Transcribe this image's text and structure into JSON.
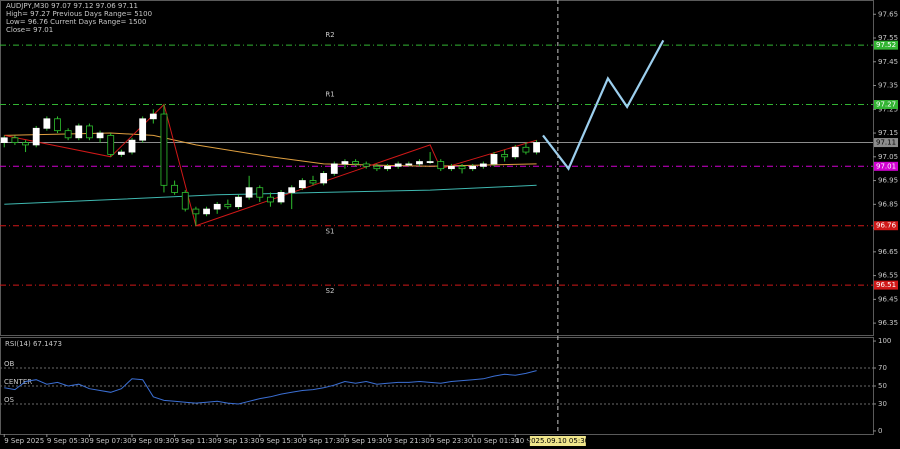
{
  "chart_data": [
    {
      "type": "candlestick",
      "header": [
        "AUDJPY,M30  97.07 97.12 97.06 97.11",
        "High= 97.27    Previous Days Range= 5100",
        "Low= 96.76    Current Days Range= 1500",
        "Close= 97.01"
      ],
      "x": [
        0,
        1,
        2,
        3,
        4,
        5,
        6,
        7,
        8,
        9,
        10,
        11,
        12,
        13,
        14,
        15,
        16,
        17,
        18,
        19,
        20,
        21,
        22,
        23,
        24,
        25,
        26,
        27,
        28,
        29,
        30,
        31,
        32,
        33,
        34,
        35,
        36,
        37,
        38,
        39,
        40,
        41,
        42,
        43,
        44,
        45,
        46,
        47,
        48,
        49,
        50
      ],
      "open": [
        97.11,
        97.13,
        97.11,
        97.1,
        97.17,
        97.21,
        97.16,
        97.13,
        97.18,
        97.13,
        97.14,
        97.06,
        97.07,
        97.12,
        97.21,
        97.23,
        96.93,
        96.9,
        96.83,
        96.81,
        96.83,
        96.85,
        96.84,
        96.88,
        96.92,
        96.88,
        96.86,
        96.9,
        96.92,
        96.95,
        96.94,
        96.98,
        97.02,
        97.03,
        97.02,
        97.01,
        97.0,
        97.01,
        97.02,
        97.02,
        97.03,
        97.03,
        97.0,
        97.01,
        97.0,
        97.01,
        97.02,
        97.06,
        97.05,
        97.09,
        97.07
      ],
      "high": [
        97.14,
        97.14,
        97.12,
        97.18,
        97.22,
        97.22,
        97.17,
        97.19,
        97.19,
        97.16,
        97.15,
        97.08,
        97.13,
        97.22,
        97.25,
        97.27,
        96.95,
        96.91,
        96.84,
        96.84,
        96.86,
        96.87,
        96.89,
        96.97,
        96.93,
        96.9,
        96.91,
        96.93,
        96.96,
        96.97,
        96.99,
        97.03,
        97.04,
        97.04,
        97.03,
        97.02,
        97.02,
        97.03,
        97.03,
        97.04,
        97.07,
        97.04,
        97.02,
        97.02,
        97.02,
        97.03,
        97.07,
        97.08,
        97.1,
        97.11,
        97.12
      ],
      "low": [
        97.09,
        97.1,
        97.07,
        97.09,
        97.16,
        97.15,
        97.12,
        97.12,
        97.12,
        97.11,
        97.05,
        97.05,
        97.06,
        97.11,
        97.19,
        96.9,
        96.89,
        96.82,
        96.76,
        96.8,
        96.81,
        96.83,
        96.83,
        96.87,
        96.86,
        96.84,
        96.85,
        96.83,
        96.91,
        96.93,
        96.93,
        96.97,
        97.0,
        97.01,
        97.0,
        96.99,
        96.99,
        97.0,
        97.01,
        97.01,
        97.02,
        96.99,
        96.99,
        96.98,
        96.99,
        97.0,
        97.01,
        97.03,
        97.04,
        97.06,
        97.06
      ],
      "close": [
        97.13,
        97.11,
        97.1,
        97.17,
        97.21,
        97.16,
        97.13,
        97.18,
        97.13,
        97.15,
        97.06,
        97.07,
        97.12,
        97.21,
        97.23,
        96.93,
        96.9,
        96.83,
        96.81,
        96.83,
        96.85,
        96.84,
        96.88,
        96.92,
        96.88,
        96.86,
        96.9,
        96.92,
        96.95,
        96.94,
        96.98,
        97.02,
        97.03,
        97.02,
        97.01,
        97.0,
        97.01,
        97.02,
        97.02,
        97.03,
        97.03,
        97.0,
        97.01,
        97.0,
        97.01,
        97.02,
        97.06,
        97.05,
        97.09,
        97.07,
        97.11
      ],
      "up_color": "#ffffff",
      "down_color": "#000000",
      "wick_color": "#2fc02f",
      "series": [
        {
          "color": "#e0a040",
          "x": [
            0,
            10,
            14,
            18,
            25,
            30,
            40,
            50
          ],
          "values": [
            97.14,
            97.15,
            97.14,
            97.1,
            97.05,
            97.02,
            97.01,
            97.02
          ]
        },
        {
          "color": "#3fb8b0",
          "x": [
            0,
            10,
            20,
            30,
            40,
            50
          ],
          "values": [
            96.85,
            96.87,
            96.89,
            96.9,
            96.91,
            96.93
          ]
        },
        {
          "color": "#d01818",
          "x": [
            0,
            10,
            15,
            18,
            40,
            41,
            50
          ],
          "values": [
            97.14,
            97.05,
            97.27,
            96.76,
            97.1,
            97.0,
            97.12
          ]
        },
        {
          "color": "#9ccfee",
          "x": [
            50.6,
            53,
            56.7,
            58.5,
            61.9
          ],
          "values": [
            97.14,
            97.0,
            97.38,
            97.26,
            97.54
          ]
        }
      ],
      "levels": [
        {
          "label": "R2",
          "value": 97.52,
          "color": "#33b533"
        },
        {
          "label": "R1",
          "value": 97.27,
          "color": "#33b533"
        },
        {
          "value": 97.11,
          "color": "#8c8c8c"
        },
        {
          "value": 97.01,
          "color": "#d000d0"
        },
        {
          "label": "S1",
          "value": 96.76,
          "color": "#d01818"
        },
        {
          "label": "S2",
          "value": 96.51,
          "color": "#d01818"
        }
      ],
      "xlim": [
        -0.4,
        81.6
      ],
      "ylim": [
        96.3,
        97.71
      ],
      "yticks": [
        97.65,
        97.55,
        97.45,
        97.35,
        97.25,
        97.15,
        97.05,
        96.95,
        96.85,
        96.75,
        96.65,
        96.55,
        96.45,
        96.35
      ]
    },
    {
      "type": "line",
      "title": "RSI(14) 67.1473",
      "color": "#3b6fd4",
      "x": [
        0,
        1,
        2,
        3,
        4,
        5,
        6,
        7,
        8,
        9,
        10,
        11,
        12,
        13,
        14,
        15,
        16,
        17,
        18,
        19,
        20,
        21,
        22,
        23,
        24,
        25,
        26,
        27,
        28,
        29,
        30,
        31,
        32,
        33,
        34,
        35,
        36,
        37,
        38,
        39,
        40,
        41,
        42,
        43,
        44,
        45,
        46,
        47,
        48,
        49,
        50
      ],
      "values": [
        48,
        46,
        55,
        57,
        52,
        54,
        50,
        52,
        47,
        45,
        43,
        47,
        58,
        57,
        38,
        34,
        33,
        32,
        31,
        32,
        33,
        31,
        30,
        33,
        36,
        38,
        41,
        43,
        45,
        46,
        48,
        51,
        55,
        53,
        55,
        52,
        53,
        54,
        54,
        55,
        54,
        53,
        55,
        56,
        57,
        58,
        61,
        63,
        62,
        64,
        67.1473
      ],
      "levels": [
        {
          "label": "OB",
          "value": 70
        },
        {
          "label": "CENTER",
          "value": 50
        },
        {
          "label": "OS",
          "value": 30
        }
      ],
      "xlim": [
        -0.4,
        81.6
      ],
      "ylim": [
        -3.4,
        104.5
      ],
      "yticks": [
        100,
        70,
        50,
        30,
        0
      ],
      "xticks": [
        {
          "value": 0,
          "label": "9 Sep 2025"
        },
        {
          "value": 4,
          "label": "9 Sep 05:30"
        },
        {
          "value": 8,
          "label": "9 Sep 07:30"
        },
        {
          "value": 12,
          "label": "9 Sep 09:30"
        },
        {
          "value": 16,
          "label": "9 Sep 11:30"
        },
        {
          "value": 20,
          "label": "9 Sep 13:30"
        },
        {
          "value": 24,
          "label": "9 Sep 15:30"
        },
        {
          "value": 28,
          "label": "9 Sep 17:30"
        },
        {
          "value": 32,
          "label": "9 Sep 19:30"
        },
        {
          "value": 36,
          "label": "9 Sep 21:30"
        },
        {
          "value": 40,
          "label": "9 Sep 23:30"
        },
        {
          "value": 44,
          "label": "10 Sep 01:30"
        },
        {
          "value": 48,
          "label": "10 Se"
        }
      ],
      "cursor": {
        "x": 52,
        "label": "2025.09.10 05:30"
      }
    }
  ]
}
